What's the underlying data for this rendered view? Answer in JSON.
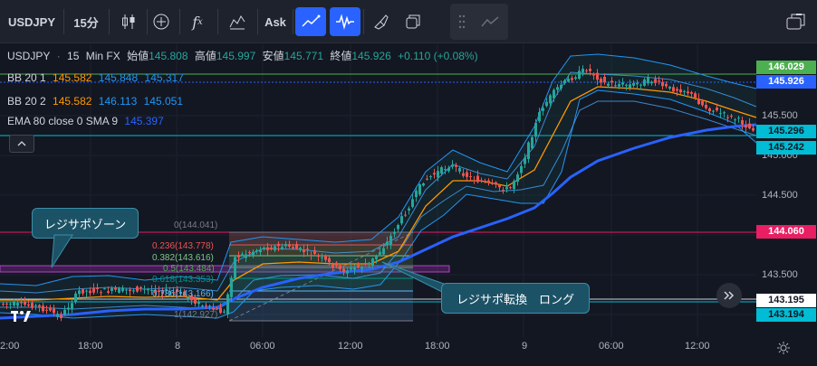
{
  "toolbar": {
    "symbol": "USDJPY",
    "interval": "15分",
    "ask_label": "Ask",
    "icons": [
      "candles-icon",
      "add-indicator-plus-icon",
      "fx-indicators-icon",
      "templates-icon",
      "line-tool-icon",
      "wave-tool-icon",
      "brush-icon",
      "window-icon",
      "drag-handle-icon",
      "trend-icon",
      "screenshot-icon"
    ]
  },
  "ohlc": {
    "symbol": "USDJPY",
    "interval": "15",
    "source": "Min FX",
    "open_label": "始値",
    "open": "145.808",
    "high_label": "高値",
    "high": "145.997",
    "low_label": "安値",
    "low": "145.771",
    "close_label": "終値",
    "close": "145.926",
    "change": "+0.110 (+0.08%)"
  },
  "indicators": {
    "bb1": {
      "label": "BB 20 1",
      "basis": "145.582",
      "upper": "145.848",
      "lower": "145.317"
    },
    "bb2": {
      "label": "BB 20 2",
      "basis": "145.582",
      "upper": "146.113",
      "lower": "145.051"
    },
    "ema": {
      "label": "EMA 80 close 0 SMA 9",
      "value": "145.397"
    }
  },
  "price_axis": {
    "ticks": [
      "145.500",
      "145.000",
      "144.500",
      "143.500"
    ],
    "labels": [
      {
        "name": "price-label-high",
        "value": "146.029",
        "color": "#4caf50"
      },
      {
        "name": "price-label-last",
        "value": "145.926",
        "color": "#2962ff"
      },
      {
        "name": "price-label-bb-upper",
        "value": "145.296",
        "color": "#00bcd4"
      },
      {
        "name": "price-label-bb-lower",
        "value": "145.242",
        "color": "#00bcd4"
      },
      {
        "name": "price-label-pink",
        "value": "144.060",
        "color": "#e91e63"
      },
      {
        "name": "price-label-line1",
        "value": "143.195",
        "color": "#ffffff"
      },
      {
        "name": "price-label-line2",
        "value": "143.194",
        "color": "#00bcd4"
      }
    ]
  },
  "time_axis": [
    "2:00",
    "18:00",
    "8",
    "06:00",
    "12:00",
    "18:00",
    "9",
    "06:00",
    "12:00"
  ],
  "fib": {
    "l0": "0(144.041)",
    "l236": "0.236(143.778)",
    "l382": "0.382(143.616)",
    "l5": "0.5(143.484)",
    "l618": "0.618(143.353)",
    "l786": "0.786(143.166)",
    "l1": "1(142.927)"
  },
  "annotations": {
    "resistance_support_zone": "レジサポゾーン",
    "reversal_long": "レジサポ転換　ロング"
  },
  "colors": {
    "accent": "#2962ff",
    "bull": "#26a69a",
    "bear": "#ef5350",
    "bb_orange": "#ff9800",
    "bb_blue": "#2196f3"
  }
}
